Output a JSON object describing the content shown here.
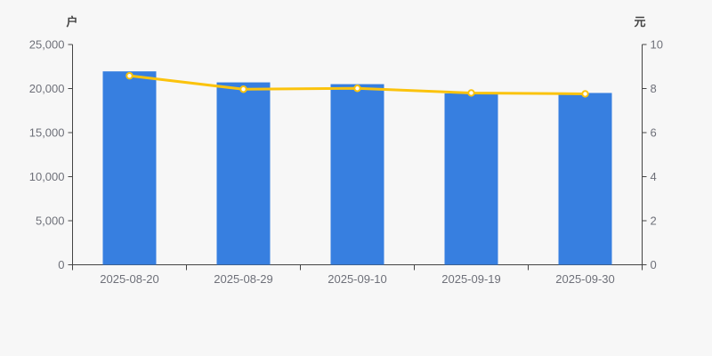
{
  "chart_data": {
    "type": "bar",
    "subtype": "bar-with-line-overlay",
    "categories": [
      "2025-08-20",
      "2025-08-29",
      "2025-09-10",
      "2025-09-19",
      "2025-09-30"
    ],
    "series": [
      {
        "name": "bar-series",
        "type": "bar",
        "axis": "left",
        "values": [
          21950,
          20700,
          20500,
          19450,
          19500
        ],
        "color": "#377fe0"
      },
      {
        "name": "line-series",
        "type": "line",
        "axis": "right",
        "values": [
          8.58,
          7.97,
          8.01,
          7.8,
          7.76
        ],
        "color": "#fbc30d",
        "marker": "circle-white-fill"
      }
    ],
    "left_axis": {
      "label": "户",
      "min": 0,
      "max": 25000,
      "tick_step": 5000,
      "tick_labels": [
        "0",
        "5,000",
        "10,000",
        "15,000",
        "20,000",
        "25,000"
      ]
    },
    "right_axis": {
      "label": "元",
      "min": 0,
      "max": 10,
      "tick_step": 2,
      "tick_labels": [
        "0",
        "2",
        "4",
        "6",
        "8",
        "10"
      ]
    },
    "grid": false,
    "legend": false,
    "title": ""
  },
  "style": {
    "background": "#f7f7f7",
    "axis_line_color": "#444444",
    "tick_label_color": "#6e7079",
    "bar_color": "#377fe0",
    "line_color": "#fbc30d",
    "marker_fill": "#ffffff"
  }
}
